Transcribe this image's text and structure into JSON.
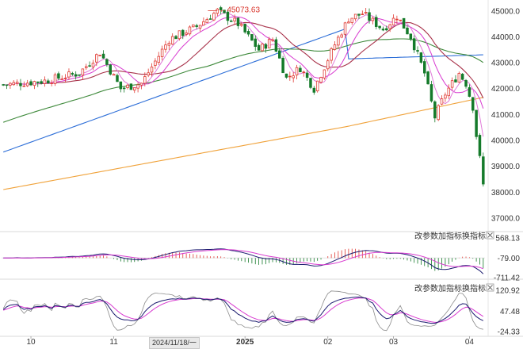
{
  "chart_data": {
    "type": "candlestick",
    "main": {
      "yticks": [
        "45000.0",
        "44000.0",
        "43000.0",
        "42000.0",
        "41000.0",
        "40000.0",
        "39000.0",
        "38000.0",
        "37000.0"
      ],
      "ylim": [
        36600,
        45300
      ],
      "high_marker": "45073.63",
      "x_dates": [
        "10",
        "11",
        "2024/11/18/一",
        "2025",
        "02",
        "03",
        "04"
      ],
      "ohlc": []
    },
    "macd": {
      "controls": [
        "改参数",
        "加指标",
        "换指标"
      ],
      "yticks": [
        "568.13",
        "-79.00",
        "-711.42"
      ]
    },
    "kdj": {
      "controls": [
        "改参数",
        "加指标",
        "换指标"
      ],
      "yticks": [
        "120.92",
        "47.48",
        "-24.33"
      ]
    },
    "colors": {
      "up": "#e03a33",
      "down": "#157a2a",
      "ma_fast": "#d83bd0",
      "ma_mid": "#a8324a",
      "ma_slow": "#3f8a3c",
      "ma_120": "#2e6fd8",
      "ma_250": "#f0a23a"
    }
  }
}
